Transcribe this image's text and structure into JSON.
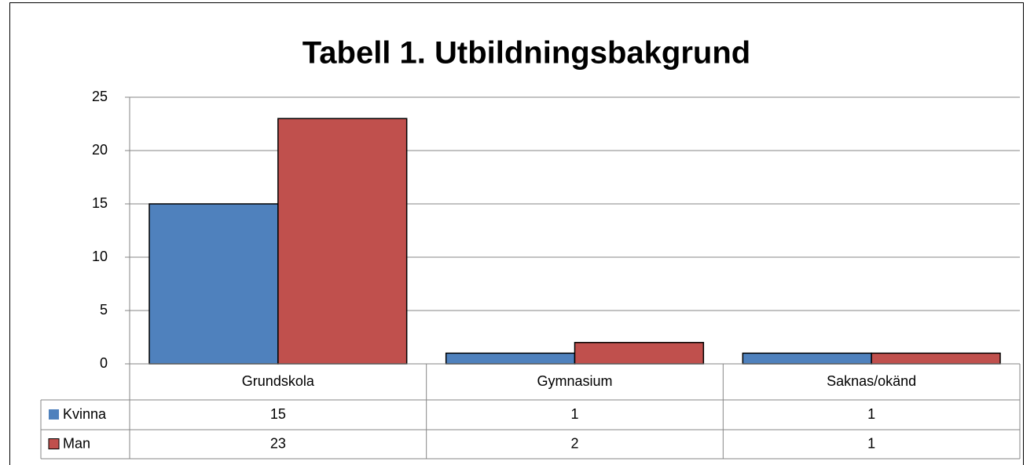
{
  "chart_data": {
    "type": "bar",
    "title": "Tabell 1. Utbildningsbakgrund",
    "categories": [
      "Grundskola",
      "Gymnasium",
      "Saknas/okänd"
    ],
    "series": [
      {
        "name": "Kvinna",
        "color": "#4f81bd",
        "values": [
          15,
          1,
          1
        ]
      },
      {
        "name": "Man",
        "color": "#c0504d",
        "values": [
          23,
          2,
          1
        ]
      }
    ],
    "ylim": [
      0,
      25
    ],
    "yticks": [
      0,
      5,
      10,
      15,
      20,
      25
    ],
    "grid": true,
    "legend": "table"
  }
}
